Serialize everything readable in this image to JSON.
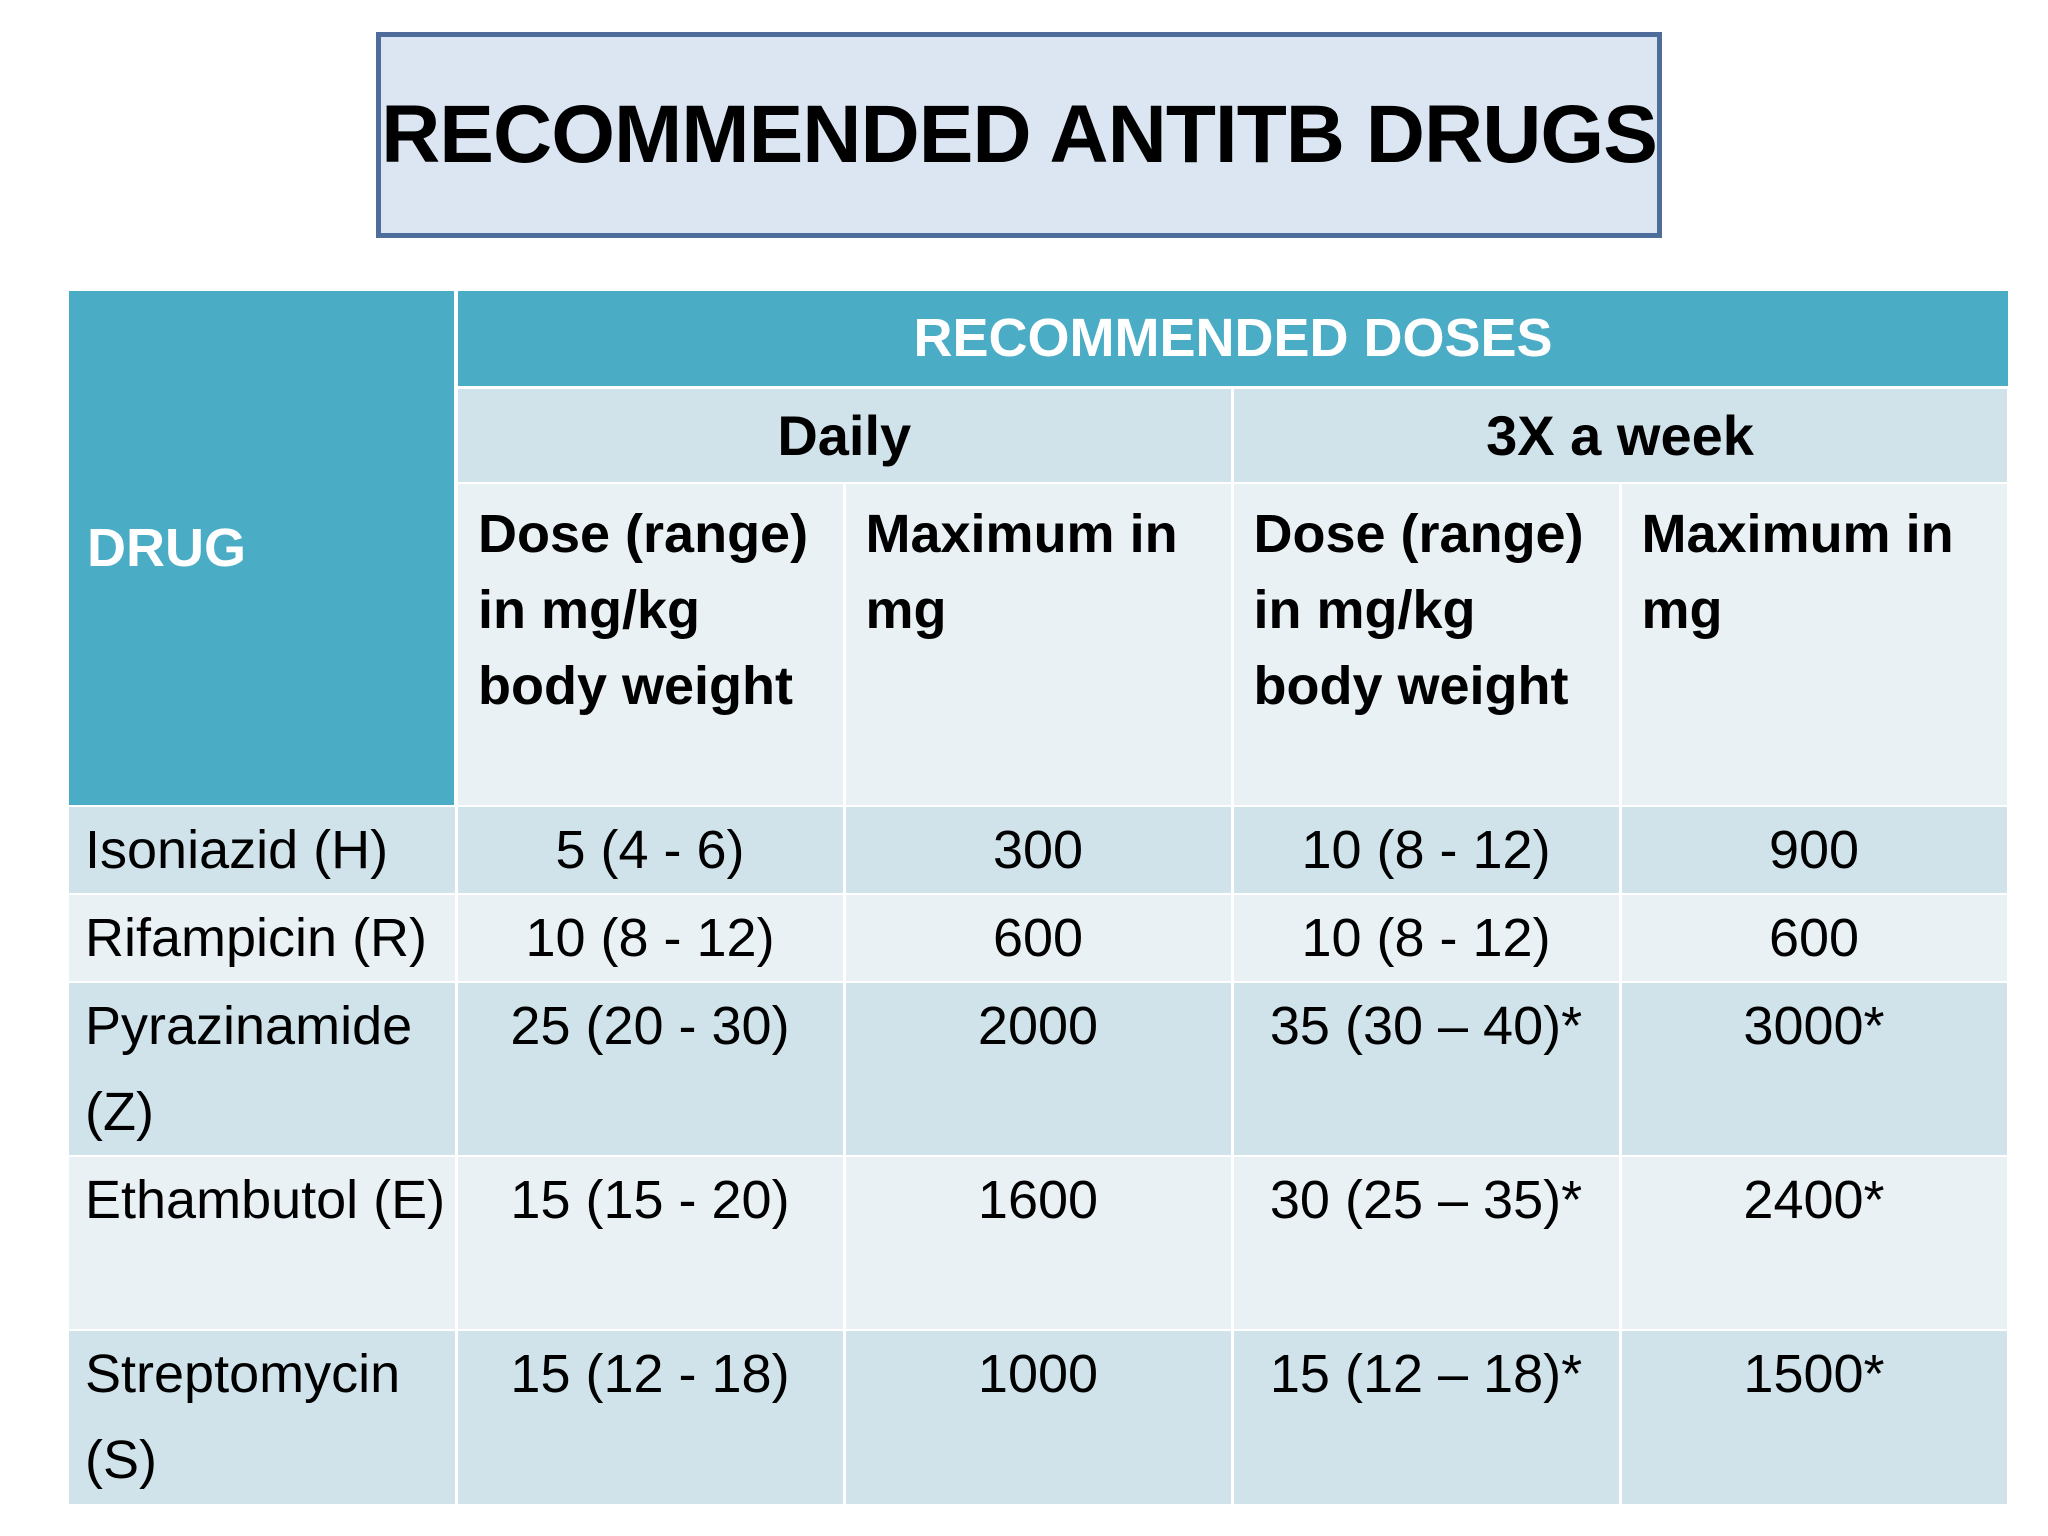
{
  "title": "RECOMMENDED ANTITB DRUGS",
  "table": {
    "drug_header": "DRUG",
    "group_header": "RECOMMENDED DOSES",
    "subgroups": [
      "Daily",
      "3X a week"
    ],
    "columns": [
      "Dose (range) in mg/kg body weight",
      "Maximum in mg",
      "Dose (range) in mg/kg body weight",
      "Maximum in mg"
    ],
    "rows": [
      {
        "drug": "Isoniazid (H)",
        "daily_dose": "5 (4 - 6)",
        "daily_max": "300",
        "weekly_dose": "10 (8 - 12)",
        "weekly_max": "900"
      },
      {
        "drug": "Rifampicin (R)",
        "daily_dose": "10 (8 - 12)",
        "daily_max": "600",
        "weekly_dose": "10 (8 - 12)",
        "weekly_max": "600"
      },
      {
        "drug": "Pyrazinamide (Z)",
        "daily_dose": "25 (20 - 30)",
        "daily_max": "2000",
        "weekly_dose": "35 (30 – 40)*",
        "weekly_max": "3000*"
      },
      {
        "drug": "Ethambutol (E)",
        "daily_dose": "15 (15 - 20)",
        "daily_max": "1600",
        "weekly_dose": "30 (25 – 35)*",
        "weekly_max": "2400*"
      },
      {
        "drug": "Streptomycin (S)",
        "daily_dose": "15 (12 - 18)",
        "daily_max": "1000",
        "weekly_dose": "15 (12 – 18)*",
        "weekly_max": "1500*"
      }
    ]
  },
  "colors": {
    "header_blue": "#4bacc6",
    "row_dark": "#d0e3ea",
    "row_light": "#e9f1f5",
    "title_fill": "#dce6f2",
    "title_border": "#4f6d9a"
  }
}
